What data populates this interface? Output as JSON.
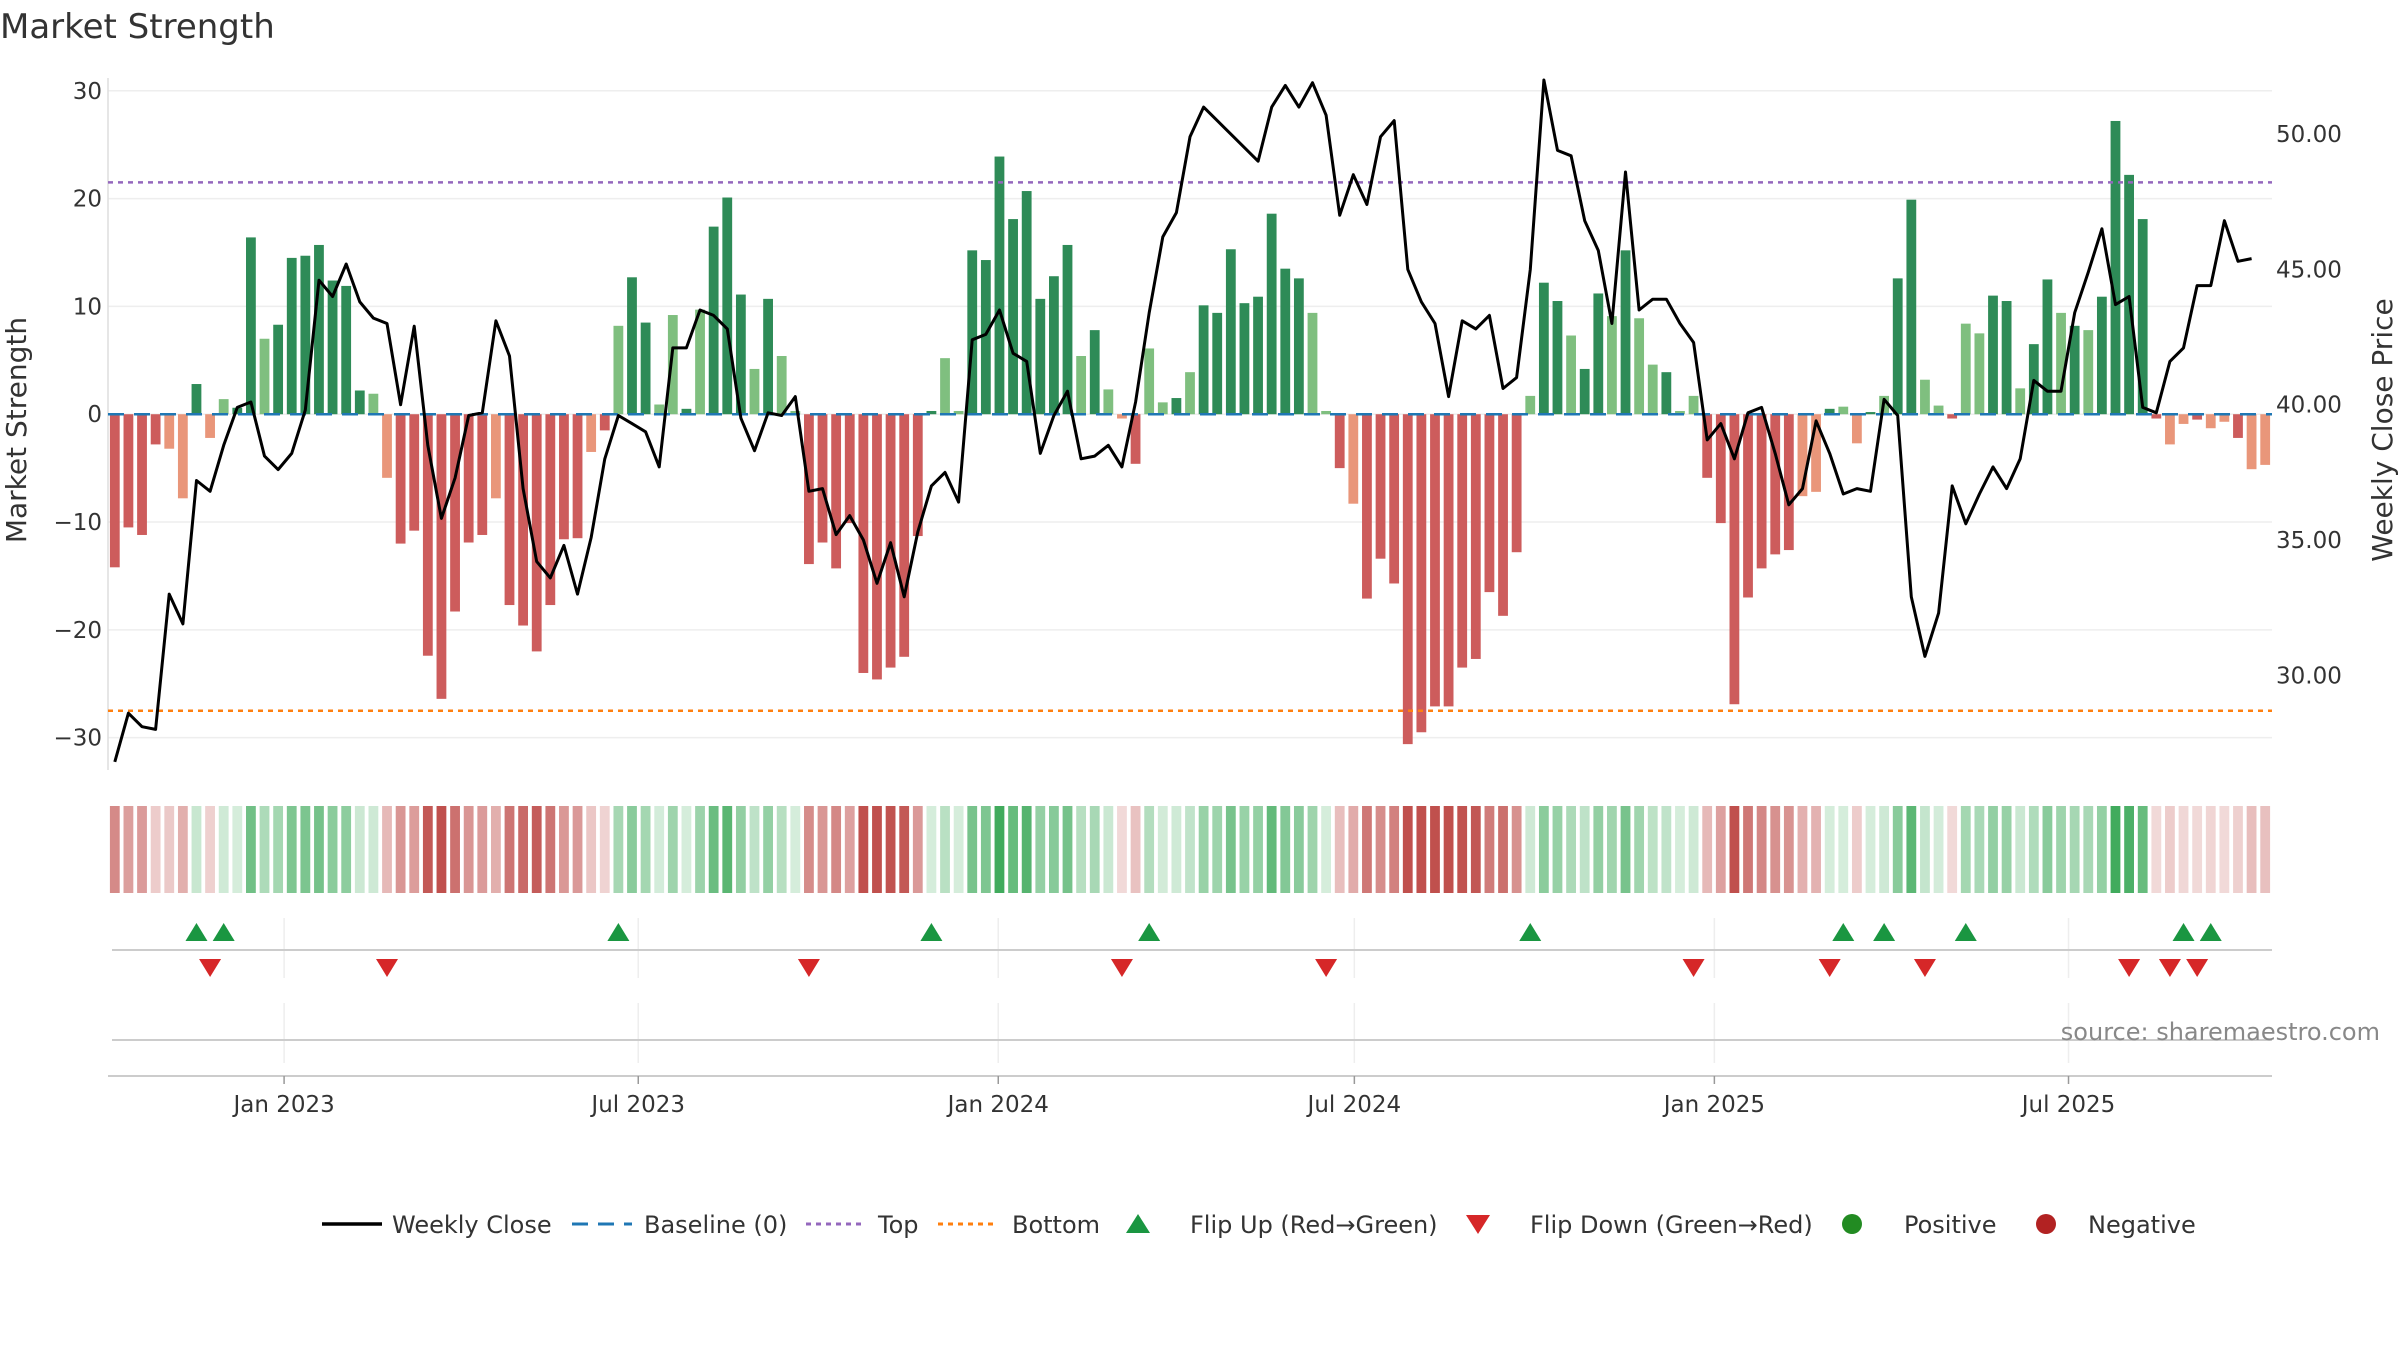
{
  "chart_data": {
    "type": "bar",
    "title": "Market Strength",
    "ylabel": "Market Strength",
    "y2label": "Weekly Close Price",
    "ylim": [
      -33,
      31
    ],
    "y2lim": [
      26.5,
      52
    ],
    "yticks": [
      30,
      20,
      10,
      0,
      -10,
      -20,
      -30
    ],
    "ytick_labels": [
      "30",
      "20",
      "10",
      "0",
      "−10",
      "−20",
      "−30"
    ],
    "y2ticks": [
      50,
      45,
      40,
      35,
      30
    ],
    "y2tick_labels": [
      "50.00",
      "45.00",
      "40.00",
      "35.00",
      "30.00"
    ],
    "top_level": 21.5,
    "bottom_level": -27.5,
    "x_start": "2022-10-03",
    "x_end": "2025-10-13",
    "xticks": [
      "2023-01-01",
      "2023-07-01",
      "2024-01-01",
      "2024-07-01",
      "2025-01-01",
      "2025-07-01"
    ],
    "xtick_labels": [
      "Jan 2023",
      "Jul 2023",
      "Jan 2024",
      "Jul 2024",
      "Jan 2025",
      "Jul 2025"
    ],
    "strength": [
      -14.2,
      -10.5,
      -11.2,
      -2.8,
      -3.2,
      -7.8,
      2.8,
      -2.2,
      1.4,
      0.6,
      16.4,
      7.0,
      8.3,
      14.5,
      14.7,
      15.7,
      12.4,
      11.9,
      2.2,
      1.9,
      -5.9,
      -12.0,
      -10.8,
      -22.4,
      -26.4,
      -18.3,
      -11.9,
      -11.2,
      -7.8,
      -17.7,
      -19.6,
      -22.0,
      -17.7,
      -11.6,
      -11.5,
      -3.5,
      -1.5,
      8.2,
      12.7,
      8.5,
      0.9,
      9.2,
      0.5,
      9.7,
      17.4,
      20.1,
      11.1,
      4.2,
      10.7,
      5.4,
      0.3,
      -13.9,
      -11.9,
      -14.3,
      -10.1,
      -24.0,
      -24.6,
      -23.5,
      -22.5,
      -11.3,
      0.3,
      5.2,
      0.3,
      15.2,
      14.3,
      23.9,
      18.1,
      20.7,
      10.7,
      12.8,
      15.7,
      5.4,
      7.8,
      2.3,
      -0.4,
      -4.6,
      6.1,
      1.1,
      1.5,
      3.9,
      10.1,
      9.4,
      15.3,
      10.3,
      10.9,
      18.6,
      13.5,
      12.6,
      9.4,
      0.3,
      -5.0,
      -8.3,
      -17.1,
      -13.4,
      -15.7,
      -30.6,
      -29.5,
      -27.1,
      -27.1,
      -23.5,
      -22.7,
      -16.5,
      -18.7,
      -12.8,
      1.7,
      12.2,
      10.5,
      7.3,
      4.2,
      11.2,
      9.1,
      15.2,
      8.9,
      4.6,
      3.9,
      0.3,
      1.7,
      -5.9,
      -10.1,
      -26.9,
      -17.0,
      -14.3,
      -13.0,
      -12.6,
      -7.6,
      -7.2,
      0.5,
      0.7,
      -2.7,
      0.2,
      1.7,
      12.6,
      19.9,
      3.2,
      0.8,
      -0.4,
      8.4,
      7.5,
      11.0,
      10.5,
      2.4,
      6.5,
      12.5,
      9.4,
      8.2,
      7.8,
      10.9,
      27.2,
      22.2,
      18.1,
      -0.4,
      -2.8,
      -0.9,
      -0.5,
      -1.3,
      -0.7,
      -2.2,
      -5.1,
      -4.7
    ],
    "weekly_close": [
      26.8,
      28.6,
      28.1,
      28.0,
      33.0,
      31.9,
      37.2,
      36.8,
      38.5,
      39.9,
      40.1,
      38.1,
      37.6,
      38.2,
      39.8,
      44.6,
      44.0,
      45.2,
      43.8,
      43.2,
      43.0,
      40.0,
      42.9,
      38.5,
      35.8,
      37.3,
      39.6,
      39.7,
      43.1,
      41.8,
      36.9,
      34.2,
      33.6,
      34.8,
      33.0,
      35.1,
      38.0,
      39.6,
      39.3,
      39.0,
      37.7,
      42.1,
      42.1,
      43.5,
      43.3,
      42.8,
      39.5,
      38.3,
      39.7,
      39.6,
      40.3,
      36.8,
      36.9,
      35.2,
      35.9,
      35.0,
      33.4,
      34.9,
      32.9,
      35.3,
      37.0,
      37.5,
      36.4,
      42.4,
      42.6,
      43.5,
      41.9,
      41.6,
      38.2,
      39.6,
      40.5,
      38.0,
      38.1,
      38.5,
      37.7,
      40.1,
      43.4,
      46.2,
      47.1,
      49.9,
      51.0,
      50.5,
      50.0,
      49.5,
      49.0,
      51.0,
      51.8,
      51.0,
      51.9,
      50.7,
      47.0,
      48.5,
      47.4,
      49.9,
      50.5,
      45.0,
      43.8,
      43.0,
      40.3,
      43.1,
      42.8,
      43.3,
      40.6,
      41.0,
      45.0,
      52.0,
      49.4,
      49.2,
      46.8,
      45.7,
      43.0,
      48.6,
      43.5,
      43.9,
      43.9,
      43.0,
      42.3,
      38.7,
      39.3,
      38.0,
      39.7,
      39.9,
      38.2,
      36.3,
      36.9,
      39.4,
      38.2,
      36.7,
      36.9,
      36.8,
      40.2,
      39.6,
      32.9,
      30.7,
      32.3,
      37.0,
      35.6,
      36.7,
      37.7,
      36.9,
      38.0,
      40.9,
      40.5,
      40.5,
      43.4,
      44.9,
      46.5,
      43.7,
      44.0,
      39.9,
      39.7,
      41.6,
      42.1,
      44.4,
      44.4,
      46.8,
      45.3,
      45.4
    ],
    "flip_up_indices": [
      6,
      8,
      37,
      60,
      76,
      104,
      127,
      130,
      136,
      152,
      154
    ],
    "flip_down_indices": [
      7,
      20,
      51,
      74,
      89,
      116,
      126,
      133,
      148,
      151,
      153
    ],
    "legend": [
      "Weekly Close",
      "Baseline (0)",
      "Top",
      "Bottom",
      "Flip Up (Red→Green)",
      "Flip Down (Green→Red)",
      "Positive",
      "Negative"
    ],
    "source": "source: sharemaestro.com"
  },
  "colors": {
    "pos_strong": "#2e8b57",
    "pos_light": "#7fbf7f",
    "neg_strong": "#cd5c5c",
    "neg_light": "#e9967a",
    "line": "#000000",
    "baseline": "#1f77b4",
    "top": "#9467bd",
    "bottom": "#ff7f0e",
    "flip_up": "#1a9641",
    "flip_down": "#d62728",
    "positive": "#228b22",
    "negative": "#b22222"
  }
}
